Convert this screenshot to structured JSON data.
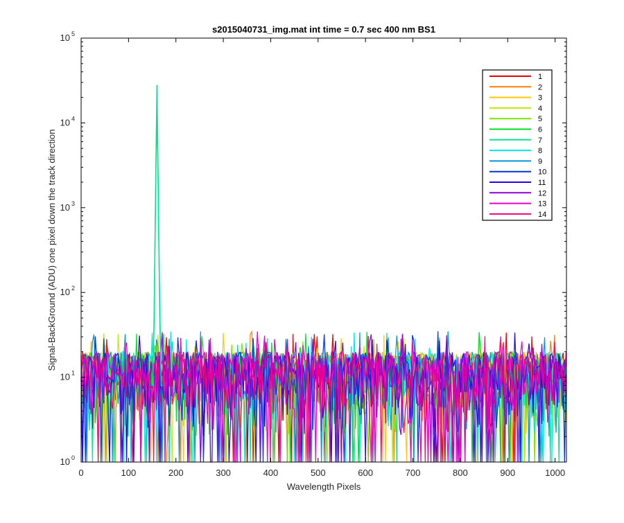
{
  "chart_data": {
    "type": "line",
    "title": "s2015040731_img.mat int time = 0.7 sec  400 nm BS1",
    "xlabel": "Wavelength Pixels",
    "ylabel": "Signal-BackGround (ADU) one pixel down the track direction",
    "x_range": [
      0,
      1024
    ],
    "y_range": [
      1,
      100000
    ],
    "y_scale": "log",
    "grid": false,
    "legend_position": "top-right",
    "x_ticks": [
      "0",
      "100",
      "200",
      "300",
      "400",
      "500",
      "600",
      "700",
      "800",
      "900",
      "1000"
    ],
    "y_ticks": [
      {
        "value": 1,
        "base": "10",
        "exp": "0"
      },
      {
        "value": 10,
        "base": "10",
        "exp": "1"
      },
      {
        "value": 100,
        "base": "10",
        "exp": "2"
      },
      {
        "value": 1000,
        "base": "10",
        "exp": "3"
      },
      {
        "value": 10000,
        "base": "10",
        "exp": "4"
      },
      {
        "value": 100000,
        "base": "10",
        "exp": "5"
      }
    ],
    "noise_floor_range_adu": [
      1,
      35
    ],
    "peak": {
      "series": "7",
      "x": 160,
      "y": 28000
    },
    "series": [
      {
        "name": "1",
        "color": "#e00000"
      },
      {
        "name": "2",
        "color": "#ff7f00"
      },
      {
        "name": "3",
        "color": "#ffc800"
      },
      {
        "name": "4",
        "color": "#c8e600"
      },
      {
        "name": "5",
        "color": "#78e600"
      },
      {
        "name": "6",
        "color": "#00dc28"
      },
      {
        "name": "7",
        "color": "#00e68c"
      },
      {
        "name": "8",
        "color": "#00e6e6"
      },
      {
        "name": "9",
        "color": "#0096dc"
      },
      {
        "name": "10",
        "color": "#0032dc"
      },
      {
        "name": "11",
        "color": "#2800e6"
      },
      {
        "name": "12",
        "color": "#8c00dc"
      },
      {
        "name": "13",
        "color": "#e600c8"
      },
      {
        "name": "14",
        "color": "#f00082"
      }
    ]
  }
}
